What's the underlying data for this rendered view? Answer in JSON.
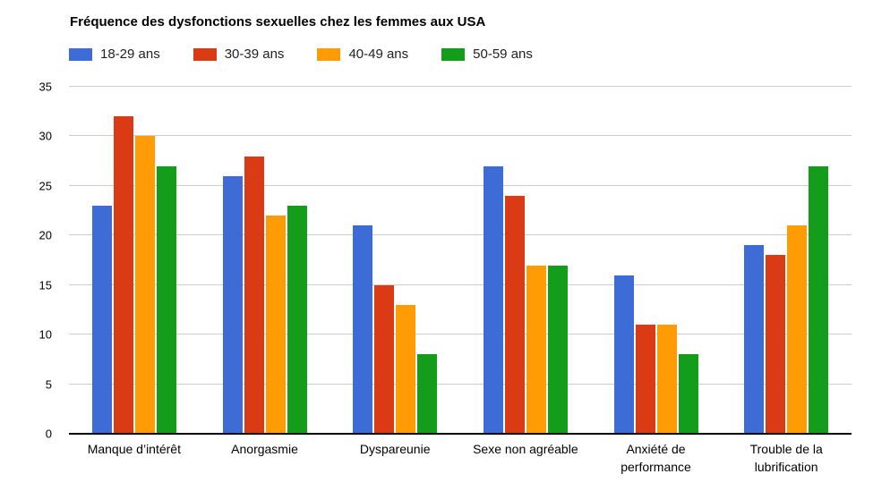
{
  "chart_data": {
    "type": "bar",
    "title": "Fréquence des dysfonctions sexuelles chez les femmes aux USA",
    "categories": [
      "Manque d’intérêt",
      "Anorgasmie",
      "Dyspareunie",
      "Sexe non agréable",
      "Anxiété de performance",
      "Trouble de la lubrification"
    ],
    "series": [
      {
        "name": "18-29 ans",
        "color": "#3D6CD7",
        "values": [
          23,
          26,
          21,
          27,
          16,
          19
        ]
      },
      {
        "name": "30-39 ans",
        "color": "#DA3B15",
        "values": [
          32,
          28,
          15,
          24,
          11,
          18
        ]
      },
      {
        "name": "40-49 ans",
        "color": "#FF9B05",
        "values": [
          30,
          22,
          13,
          17,
          11,
          21
        ]
      },
      {
        "name": "50-59 ans",
        "color": "#149C1B",
        "values": [
          27,
          23,
          8,
          17,
          8,
          27
        ]
      }
    ],
    "xlabel": "",
    "ylabel": "",
    "ylim": [
      0,
      35
    ],
    "yticks": [
      0,
      5,
      10,
      15,
      20,
      25,
      30,
      35
    ],
    "grid": true,
    "legend_position": "top",
    "gridline_color": "#cccccc",
    "axis_line_color": "#000000",
    "background_color": "#ffffff"
  }
}
